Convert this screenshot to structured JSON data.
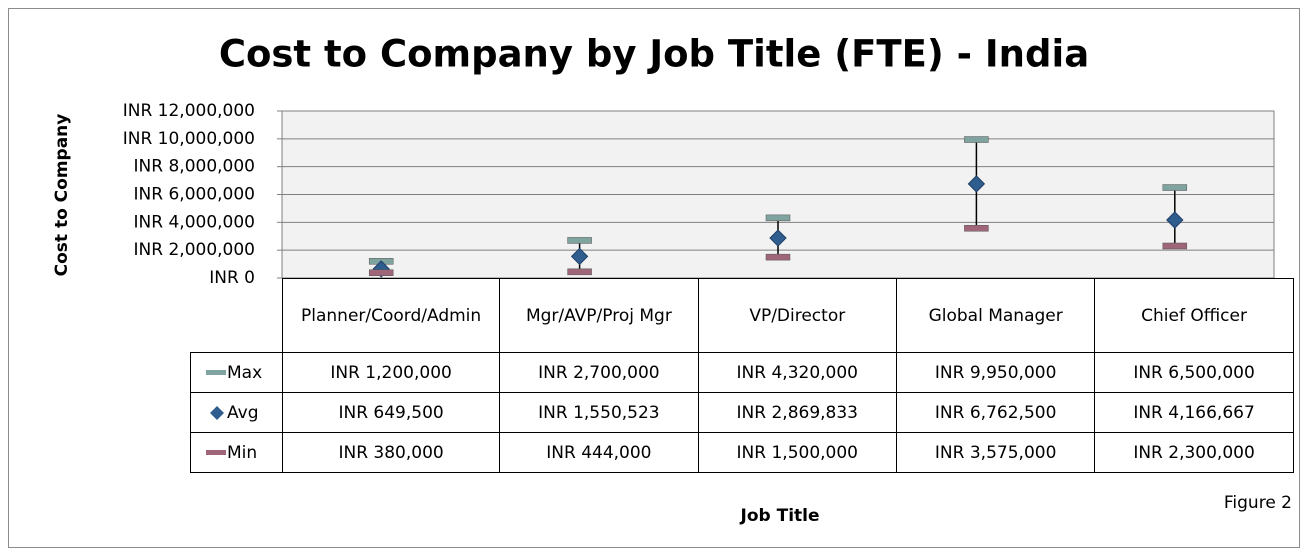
{
  "chart_data": {
    "type": "hilo",
    "title": "Cost to Company by Job Title (FTE) - India",
    "y_axis_label": "Cost to Company",
    "x_axis_label": "Job Title",
    "figure_label": "Figure 2",
    "categories": [
      "Planner/Coord/Admin",
      "Mgr/AVP/Proj Mgr",
      "VP/Director",
      "Global Manager",
      "Chief Officer"
    ],
    "series": [
      {
        "name": "Max",
        "color": "#7fa39f",
        "marker": "dash",
        "values": [
          1200000,
          2700000,
          4320000,
          9950000,
          6500000
        ],
        "value_labels": [
          "INR 1,200,000",
          "INR 2,700,000",
          "INR 4,320,000",
          "INR 9,950,000",
          "INR 6,500,000"
        ]
      },
      {
        "name": "Avg",
        "color": "#2f5d8e",
        "marker": "diamond",
        "values": [
          649500,
          1550523,
          2869833,
          6762500,
          4166667
        ],
        "value_labels": [
          "INR 649,500",
          "INR 1,550,523",
          "INR 2,869,833",
          "INR 6,762,500",
          "INR 4,166,667"
        ]
      },
      {
        "name": "Min",
        "color": "#9e6678",
        "marker": "dash",
        "values": [
          380000,
          444000,
          1500000,
          3575000,
          2300000
        ],
        "value_labels": [
          "INR 380,000",
          "INR 444,000",
          "INR 1,500,000",
          "INR 3,575,000",
          "INR 2,300,000"
        ]
      }
    ],
    "ylim": [
      0,
      12000000
    ],
    "yticks": [
      {
        "value": 0,
        "label": "INR 0"
      },
      {
        "value": 2000000,
        "label": "INR 2,000,000"
      },
      {
        "value": 4000000,
        "label": "INR 4,000,000"
      },
      {
        "value": 6000000,
        "label": "INR 6,000,000"
      },
      {
        "value": 8000000,
        "label": "INR 8,000,000"
      },
      {
        "value": 10000000,
        "label": "INR 10,000,000"
      },
      {
        "value": 12000000,
        "label": "INR 12,000,000"
      }
    ],
    "grid": true
  }
}
